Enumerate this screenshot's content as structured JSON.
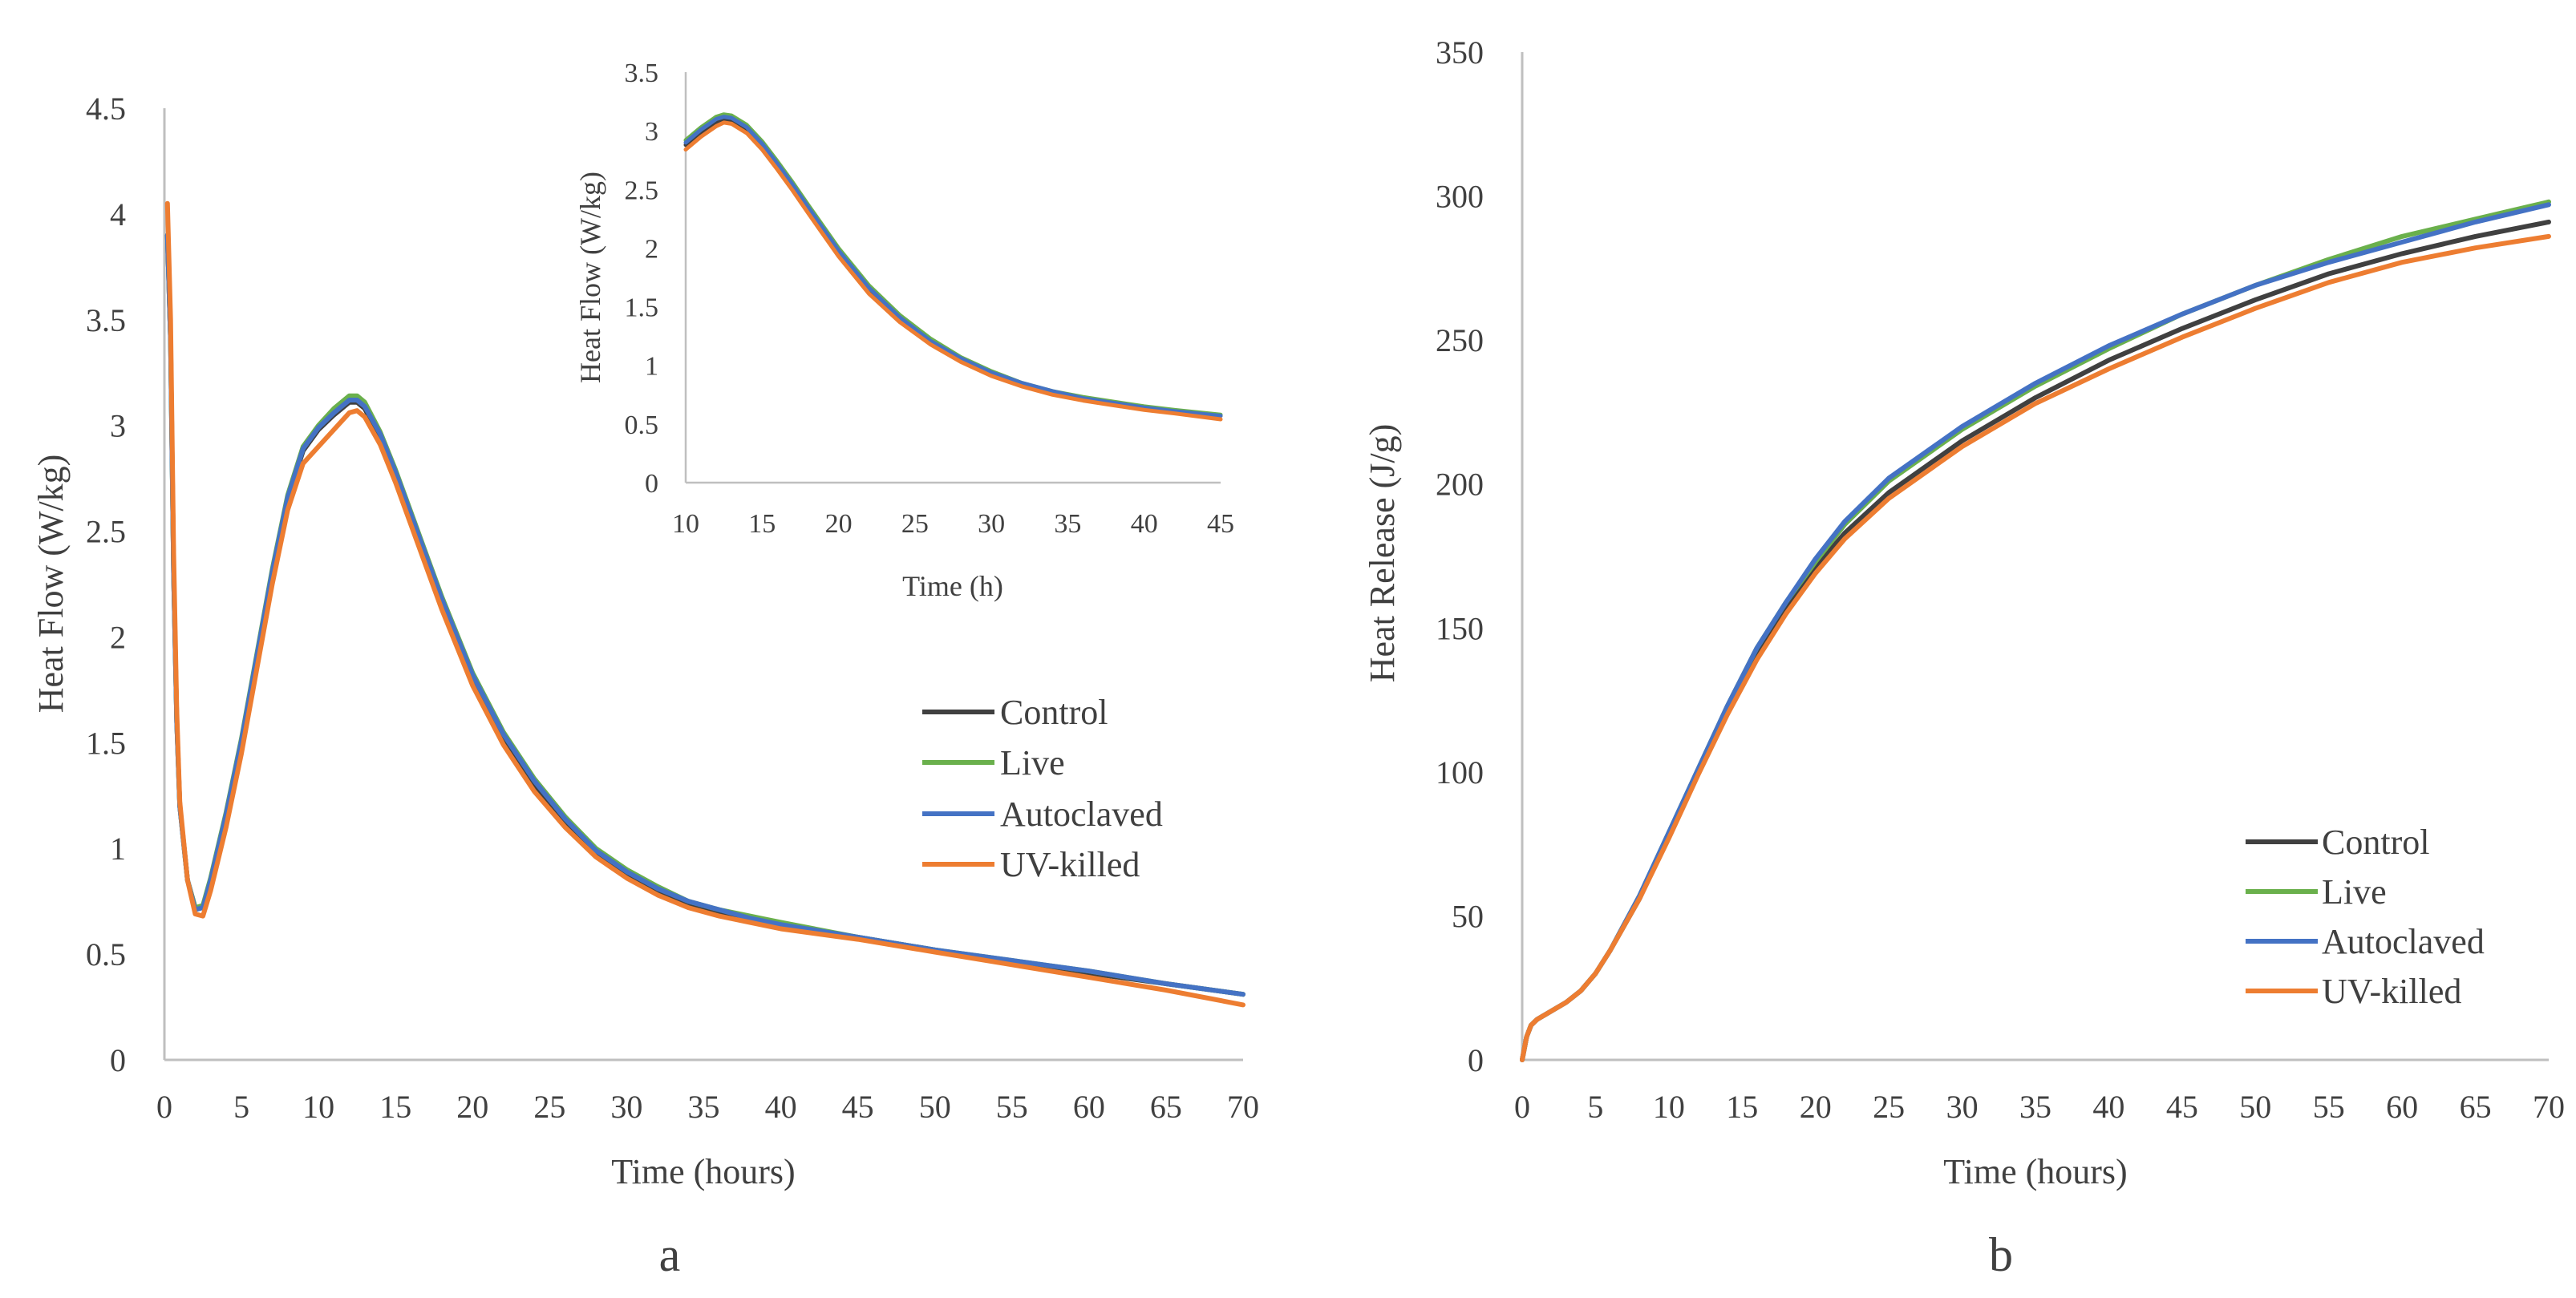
{
  "chart_data": [
    {
      "panel": "a",
      "type": "line",
      "title": "",
      "xlabel": "Time (hours)",
      "ylabel": "Heat Flow (W/kg)",
      "xlim": [
        0,
        70
      ],
      "ylim": [
        0,
        4.5
      ],
      "xticks": [
        "0",
        "5",
        "10",
        "15",
        "20",
        "25",
        "30",
        "35",
        "40",
        "45",
        "50",
        "55",
        "60",
        "65",
        "70"
      ],
      "yticks": [
        "0",
        "0.5",
        "1",
        "1.5",
        "2",
        "2.5",
        "3",
        "3.5",
        "4",
        "4.5"
      ],
      "grid": false,
      "legend_position": "right",
      "series": [
        {
          "name": "Control",
          "color": "#404040",
          "x": [
            0.2,
            0.4,
            0.6,
            0.8,
            1,
            1.5,
            2,
            2.5,
            3,
            4,
            5,
            6,
            7,
            8,
            9,
            10,
            11,
            12,
            12.5,
            13,
            14,
            15,
            16,
            17,
            18,
            20,
            22,
            24,
            26,
            28,
            30,
            32,
            34,
            36,
            38,
            40,
            45,
            50,
            55,
            60,
            65,
            70
          ],
          "y": [
            3.9,
            3.4,
            2.3,
            1.6,
            1.2,
            0.85,
            0.72,
            0.72,
            0.85,
            1.15,
            1.5,
            1.9,
            2.3,
            2.65,
            2.88,
            2.98,
            3.05,
            3.11,
            3.11,
            3.08,
            2.94,
            2.76,
            2.56,
            2.36,
            2.16,
            1.8,
            1.52,
            1.3,
            1.13,
            0.98,
            0.88,
            0.8,
            0.74,
            0.7,
            0.67,
            0.64,
            0.58,
            0.52,
            0.46,
            0.41,
            0.36,
            0.31
          ]
        },
        {
          "name": "Live",
          "color": "#6ab04c",
          "x": [
            0.2,
            0.4,
            0.6,
            0.8,
            1,
            1.5,
            2,
            2.5,
            3,
            4,
            5,
            6,
            7,
            8,
            9,
            10,
            11,
            12,
            12.5,
            13,
            14,
            15,
            16,
            17,
            18,
            20,
            22,
            24,
            26,
            28,
            30,
            32,
            34,
            36,
            38,
            40,
            45,
            50,
            55,
            60,
            65,
            70
          ],
          "y": [
            3.9,
            3.4,
            2.3,
            1.6,
            1.2,
            0.85,
            0.72,
            0.73,
            0.86,
            1.17,
            1.52,
            1.92,
            2.32,
            2.67,
            2.9,
            3.0,
            3.08,
            3.14,
            3.14,
            3.11,
            2.97,
            2.79,
            2.59,
            2.39,
            2.19,
            1.83,
            1.55,
            1.33,
            1.15,
            1.0,
            0.9,
            0.82,
            0.75,
            0.71,
            0.68,
            0.65,
            0.58,
            0.52,
            0.47,
            0.42,
            0.36,
            0.31
          ]
        },
        {
          "name": "Autoclaved",
          "color": "#4472c4",
          "x": [
            0.2,
            0.4,
            0.6,
            0.8,
            1,
            1.5,
            2,
            2.5,
            3,
            4,
            5,
            6,
            7,
            8,
            9,
            10,
            11,
            12,
            12.5,
            13,
            14,
            15,
            16,
            17,
            18,
            20,
            22,
            24,
            26,
            28,
            30,
            32,
            34,
            36,
            38,
            40,
            45,
            50,
            55,
            60,
            65,
            70
          ],
          "y": [
            3.9,
            3.4,
            2.3,
            1.6,
            1.2,
            0.85,
            0.71,
            0.72,
            0.85,
            1.16,
            1.51,
            1.91,
            2.31,
            2.66,
            2.89,
            2.99,
            3.06,
            3.12,
            3.12,
            3.09,
            2.96,
            2.78,
            2.58,
            2.38,
            2.18,
            1.82,
            1.54,
            1.32,
            1.14,
            0.99,
            0.89,
            0.81,
            0.75,
            0.71,
            0.67,
            0.64,
            0.58,
            0.52,
            0.47,
            0.42,
            0.36,
            0.31
          ]
        },
        {
          "name": "UV-killed",
          "color": "#ed7d31",
          "x": [
            0.2,
            0.4,
            0.6,
            0.8,
            1,
            1.5,
            2,
            2.5,
            3,
            4,
            5,
            6,
            7,
            8,
            9,
            10,
            11,
            12,
            12.5,
            13,
            14,
            15,
            16,
            17,
            18,
            20,
            22,
            24,
            26,
            28,
            30,
            32,
            34,
            36,
            38,
            40,
            45,
            50,
            55,
            60,
            65,
            70
          ],
          "y": [
            4.05,
            3.5,
            2.4,
            1.65,
            1.22,
            0.85,
            0.69,
            0.68,
            0.8,
            1.1,
            1.45,
            1.85,
            2.25,
            2.6,
            2.82,
            2.9,
            2.98,
            3.06,
            3.07,
            3.04,
            2.91,
            2.73,
            2.53,
            2.33,
            2.13,
            1.77,
            1.49,
            1.27,
            1.1,
            0.96,
            0.86,
            0.78,
            0.72,
            0.68,
            0.65,
            0.62,
            0.57,
            0.51,
            0.45,
            0.39,
            0.33,
            0.26
          ]
        }
      ],
      "inset": {
        "type": "line",
        "xlabel": "Time (h)",
        "ylabel": "Heat Flow (W/kg)",
        "xlim": [
          10,
          45
        ],
        "ylim": [
          0,
          3.5
        ],
        "xticks": [
          "10",
          "15",
          "20",
          "25",
          "30",
          "35",
          "40",
          "45"
        ],
        "yticks": [
          "0",
          "0.5",
          "1",
          "1.5",
          "2",
          "2.5",
          "3",
          "3.5"
        ],
        "series": [
          {
            "name": "Control",
            "color": "#404040",
            "x": [
              10,
              11,
              12,
              12.5,
              13,
              14,
              15,
              16,
              17,
              18,
              20,
              22,
              24,
              26,
              28,
              30,
              32,
              34,
              36,
              38,
              40,
              42,
              45
            ],
            "y": [
              2.88,
              2.98,
              3.07,
              3.1,
              3.09,
              3.01,
              2.87,
              2.7,
              2.52,
              2.33,
              1.96,
              1.64,
              1.39,
              1.2,
              1.05,
              0.93,
              0.84,
              0.77,
              0.72,
              0.68,
              0.64,
              0.61,
              0.57
            ]
          },
          {
            "name": "Live",
            "color": "#6ab04c",
            "x": [
              10,
              11,
              12,
              12.5,
              13,
              14,
              15,
              16,
              17,
              18,
              20,
              22,
              24,
              26,
              28,
              30,
              32,
              34,
              36,
              38,
              40,
              42,
              45
            ],
            "y": [
              2.92,
              3.03,
              3.12,
              3.14,
              3.13,
              3.05,
              2.91,
              2.74,
              2.56,
              2.37,
              2.0,
              1.68,
              1.43,
              1.23,
              1.07,
              0.95,
              0.85,
              0.78,
              0.73,
              0.69,
              0.65,
              0.62,
              0.58
            ]
          },
          {
            "name": "Autoclaved",
            "color": "#4472c4",
            "x": [
              10,
              11,
              12,
              12.5,
              13,
              14,
              15,
              16,
              17,
              18,
              20,
              22,
              24,
              26,
              28,
              30,
              32,
              34,
              36,
              38,
              40,
              42,
              45
            ],
            "y": [
              2.9,
              3.01,
              3.1,
              3.12,
              3.11,
              3.03,
              2.89,
              2.72,
              2.54,
              2.35,
              1.98,
              1.66,
              1.41,
              1.21,
              1.06,
              0.94,
              0.85,
              0.78,
              0.72,
              0.68,
              0.64,
              0.61,
              0.57
            ]
          },
          {
            "name": "UV-killed",
            "color": "#ed7d31",
            "x": [
              10,
              11,
              12,
              12.5,
              13,
              14,
              15,
              16,
              17,
              18,
              20,
              22,
              24,
              26,
              28,
              30,
              32,
              34,
              36,
              38,
              40,
              42,
              45
            ],
            "y": [
              2.84,
              2.95,
              3.04,
              3.07,
              3.06,
              2.98,
              2.84,
              2.67,
              2.49,
              2.3,
              1.93,
              1.61,
              1.37,
              1.18,
              1.03,
              0.91,
              0.82,
              0.75,
              0.7,
              0.66,
              0.62,
              0.59,
              0.54
            ]
          }
        ]
      }
    },
    {
      "panel": "b",
      "type": "line",
      "title": "",
      "xlabel": "Time (hours)",
      "ylabel": "Heat Release (J/g)",
      "xlim": [
        0,
        70
      ],
      "ylim": [
        0,
        350
      ],
      "xticks": [
        "0",
        "5",
        "10",
        "15",
        "20",
        "25",
        "30",
        "35",
        "40",
        "45",
        "50",
        "55",
        "60",
        "65",
        "70"
      ],
      "yticks": [
        "0",
        "50",
        "100",
        "150",
        "200",
        "250",
        "300",
        "350"
      ],
      "grid": false,
      "legend_position": "bottom-right",
      "series": [
        {
          "name": "Control",
          "color": "#404040",
          "x": [
            0,
            0.3,
            0.6,
            1,
            2,
            3,
            4,
            5,
            6,
            8,
            10,
            12,
            14,
            16,
            18,
            20,
            22,
            25,
            30,
            35,
            40,
            45,
            50,
            55,
            60,
            65,
            70
          ],
          "y": [
            0,
            8,
            12,
            14,
            17,
            20,
            24,
            30,
            38,
            56,
            78,
            100,
            121,
            141,
            157,
            171,
            183,
            197,
            215,
            230,
            243,
            254,
            264,
            273,
            280,
            286,
            291
          ]
        },
        {
          "name": "Live",
          "color": "#6ab04c",
          "x": [
            0,
            0.3,
            0.6,
            1,
            2,
            3,
            4,
            5,
            6,
            8,
            10,
            12,
            14,
            16,
            18,
            20,
            22,
            25,
            30,
            35,
            40,
            45,
            50,
            55,
            60,
            65,
            70
          ],
          "y": [
            0,
            8,
            12,
            14,
            17,
            20,
            24,
            30,
            38,
            57,
            79,
            101,
            123,
            143,
            159,
            173,
            186,
            201,
            219,
            234,
            247,
            259,
            269,
            278,
            286,
            292,
            298
          ]
        },
        {
          "name": "Autoclaved",
          "color": "#4472c4",
          "x": [
            0,
            0.3,
            0.6,
            1,
            2,
            3,
            4,
            5,
            6,
            8,
            10,
            12,
            14,
            16,
            18,
            20,
            22,
            25,
            30,
            35,
            40,
            45,
            50,
            55,
            60,
            65,
            70
          ],
          "y": [
            0,
            8,
            12,
            14,
            17,
            20,
            24,
            30,
            38,
            57,
            79,
            101,
            123,
            143,
            159,
            174,
            187,
            202,
            220,
            235,
            248,
            259,
            269,
            277,
            284,
            291,
            297
          ]
        },
        {
          "name": "UV-killed",
          "color": "#ed7d31",
          "x": [
            0,
            0.3,
            0.6,
            1,
            2,
            3,
            4,
            5,
            6,
            8,
            10,
            12,
            14,
            16,
            18,
            20,
            22,
            25,
            30,
            35,
            40,
            45,
            50,
            55,
            60,
            65,
            70
          ],
          "y": [
            0,
            8,
            12,
            14,
            17,
            20,
            24,
            30,
            38,
            56,
            77,
            99,
            120,
            139,
            155,
            169,
            181,
            195,
            213,
            228,
            240,
            251,
            261,
            270,
            277,
            282,
            286
          ]
        }
      ]
    }
  ],
  "panel_labels": {
    "a": "a",
    "b": "b"
  }
}
